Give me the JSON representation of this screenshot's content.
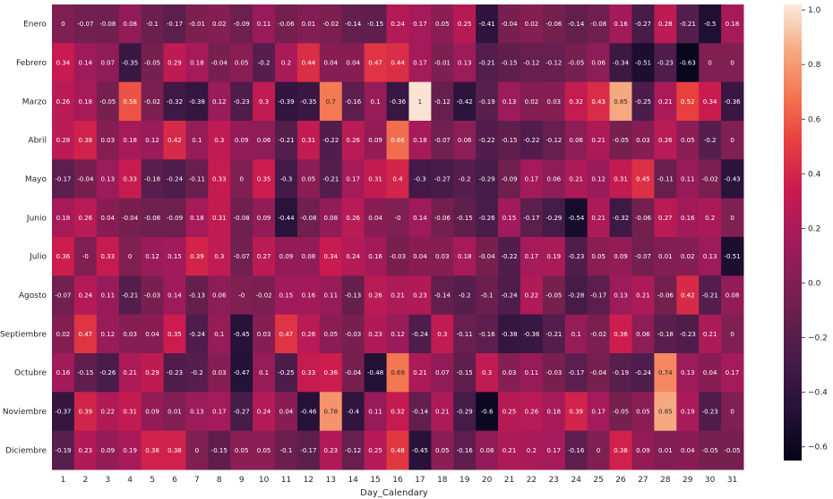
{
  "chart_data": {
    "type": "heatmap",
    "title": "",
    "xlabel": "Day_Calendary",
    "ylabel": "",
    "x_categories": [
      "1",
      "2",
      "3",
      "4",
      "5",
      "6",
      "7",
      "8",
      "9",
      "10",
      "11",
      "12",
      "13",
      "14",
      "15",
      "16",
      "17",
      "18",
      "19",
      "20",
      "21",
      "22",
      "23",
      "24",
      "25",
      "26",
      "27",
      "28",
      "29",
      "30",
      "31"
    ],
    "y_categories": [
      "Enero",
      "Febrero",
      "Marzo",
      "Abril",
      "Mayo",
      "Junio",
      "Julio",
      "Agosto",
      "Septiembre",
      "Octubre",
      "Noviembre",
      "Diciembre"
    ],
    "values": [
      [
        "0",
        "-0.07",
        "-0.08",
        "0.08",
        "-0.1",
        "-0.17",
        "-0.01",
        "0.02",
        "-0.09",
        "0.11",
        "-0.06",
        "0.01",
        "-0.02",
        "-0.14",
        "-0.15",
        "0.24",
        "0.17",
        "0.05",
        "0.25",
        "-0.41",
        "-0.04",
        "0.02",
        "-0.06",
        "-0.14",
        "-0.08",
        "0.16",
        "-0.27",
        "0.28",
        "-0.21",
        "-0.5",
        "0.18"
      ],
      [
        "0.34",
        "0.14",
        "0.07",
        "-0.35",
        "-0.05",
        "0.29",
        "0.18",
        "-0.04",
        "0.05",
        "-0.2",
        "0.2",
        "0.44",
        "0.04",
        "0.04",
        "0.47",
        "0.44",
        "0.17",
        "-0.01",
        "0.13",
        "-0.21",
        "-0.15",
        "-0.12",
        "-0.12",
        "-0.05",
        "0.06",
        "-0.34",
        "-0.51",
        "-0.23",
        "-0.63",
        "0",
        "0"
      ],
      [
        "0.26",
        "0.18",
        "-0.05",
        "0.58",
        "-0.02",
        "-0.32",
        "-0.38",
        "0.12",
        "-0.23",
        "0.3",
        "-0.39",
        "-0.35",
        "0.7",
        "-0.16",
        "0.1",
        "-0.36",
        "1",
        "-0.12",
        "-0.42",
        "-0.19",
        "0.13",
        "0.02",
        "0.03",
        "0.32",
        "0.43",
        "0.85",
        "-0.25",
        "0.21",
        "0.52",
        "0.34",
        "-0.36"
      ],
      [
        "0.28",
        "0.38",
        "0.03",
        "0.18",
        "0.12",
        "0.42",
        "0.1",
        "0.3",
        "0.09",
        "0.06",
        "-0.21",
        "0.31",
        "-0.22",
        "0.26",
        "0.09",
        "0.66",
        "0.18",
        "-0.07",
        "0.06",
        "-0.22",
        "-0.15",
        "-0.22",
        "-0.12",
        "0.06",
        "0.21",
        "-0.05",
        "0.03",
        "0.26",
        "0.05",
        "-0.2",
        "0"
      ],
      [
        "-0.17",
        "-0.04",
        "0.13",
        "0.33",
        "-0.18",
        "-0.24",
        "-0.11",
        "0.33",
        "0",
        "0.35",
        "-0.3",
        "0.05",
        "-0.21",
        "0.17",
        "0.31",
        "0.4",
        "-0.3",
        "-0.27",
        "-0.2",
        "-0.29",
        "-0.09",
        "0.17",
        "0.06",
        "0.21",
        "0.12",
        "0.31",
        "0.45",
        "-0.11",
        "0.11",
        "-0.02",
        "-0.43"
      ],
      [
        "0.18",
        "0.26",
        "0.04",
        "-0.04",
        "-0.08",
        "-0.09",
        "0.18",
        "0.31",
        "-0.08",
        "0.09",
        "-0.44",
        "-0.08",
        "0.08",
        "0.26",
        "0.04",
        "-0",
        "0.14",
        "-0.06",
        "-0.15",
        "-0.26",
        "0.15",
        "-0.17",
        "-0.29",
        "-0.54",
        "0.21",
        "-0.32",
        "-0.06",
        "0.27",
        "0.16",
        "0.2",
        "0"
      ],
      [
        "0.36",
        "-0",
        "0.33",
        "0",
        "0.12",
        "0.15",
        "0.39",
        "0.3",
        "-0.07",
        "0.27",
        "0.09",
        "0.08",
        "0.34",
        "0.24",
        "0.16",
        "-0.03",
        "0.04",
        "0.03",
        "0.18",
        "-0.04",
        "-0.22",
        "0.17",
        "0.19",
        "-0.23",
        "0.05",
        "0.09",
        "-0.07",
        "0.01",
        "0.02",
        "0.13",
        "-0.51"
      ],
      [
        "-0.07",
        "0.24",
        "0.11",
        "-0.21",
        "-0.03",
        "0.14",
        "-0.13",
        "0.06",
        "-0",
        "-0.02",
        "0.15",
        "0.16",
        "0.11",
        "-0.13",
        "0.26",
        "0.21",
        "0.23",
        "-0.14",
        "-0.2",
        "-0.1",
        "-0.24",
        "0.22",
        "-0.05",
        "-0.28",
        "-0.17",
        "0.13",
        "0.21",
        "-0.06",
        "0.42",
        "-0.21",
        "0.08"
      ],
      [
        "0.02",
        "0.47",
        "0.12",
        "0.03",
        "0.04",
        "0.35",
        "-0.24",
        "0.1",
        "-0.45",
        "0.03",
        "0.47",
        "0.26",
        "0.05",
        "-0.03",
        "0.23",
        "0.12",
        "-0.24",
        "0.3",
        "-0.11",
        "-0.16",
        "-0.38",
        "-0.36",
        "-0.21",
        "0.1",
        "-0.02",
        "0.36",
        "0.06",
        "-0.18",
        "-0.23",
        "0.21",
        "0"
      ],
      [
        "0.16",
        "-0.15",
        "-0.26",
        "0.21",
        "0.29",
        "-0.23",
        "-0.2",
        "0.03",
        "-0.47",
        "0.1",
        "-0.25",
        "0.33",
        "0.36",
        "-0.04",
        "-0.48",
        "0.69",
        "0.21",
        "0.07",
        "-0.15",
        "0.3",
        "0.03",
        "0.11",
        "-0.03",
        "-0.17",
        "-0.04",
        "-0.19",
        "-0.24",
        "0.74",
        "0.13",
        "0.04",
        "0.17"
      ],
      [
        "-0.37",
        "0.39",
        "0.22",
        "0.31",
        "0.09",
        "0.01",
        "0.13",
        "0.17",
        "-0.27",
        "0.24",
        "0.04",
        "-0.46",
        "0.78",
        "-0.4",
        "0.11",
        "0.32",
        "-0.14",
        "0.21",
        "-0.29",
        "-0.6",
        "0.25",
        "0.26",
        "0.18",
        "0.39",
        "0.17",
        "-0.05",
        "0.05",
        "0.85",
        "0.19",
        "-0.23",
        "0"
      ],
      [
        "-0.19",
        "0.23",
        "0.09",
        "0.19",
        "0.38",
        "0.38",
        "0",
        "-0.15",
        "0.05",
        "0.05",
        "-0.1",
        "-0.17",
        "0.23",
        "-0.12",
        "0.25",
        "0.48",
        "-0.45",
        "0.05",
        "-0.16",
        "0.08",
        "0.21",
        "0.2",
        "0.17",
        "-0.16",
        "0",
        "0.38",
        "0.09",
        "0.01",
        "0.04",
        "-0.05",
        "-0.05"
      ]
    ],
    "colorbar": {
      "min": -0.65,
      "max": 1.02,
      "ticks": [
        "1.0",
        "0.8",
        "0.6",
        "0.4",
        "0.2",
        "0.0",
        "−0.2",
        "−0.4",
        "−0.6"
      ],
      "colormap": "rocket"
    },
    "grid": false,
    "legend": "colorbar-right"
  }
}
